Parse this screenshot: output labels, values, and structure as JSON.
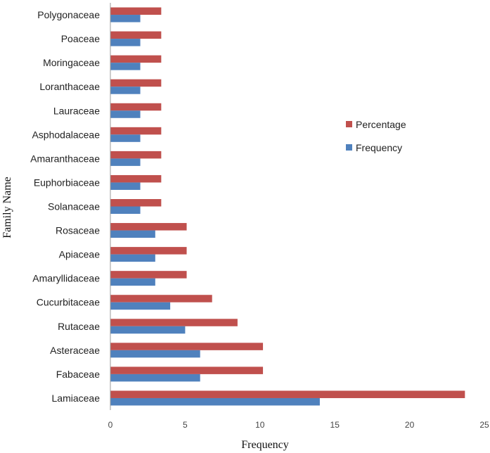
{
  "chart_data": {
    "type": "bar",
    "orientation": "horizontal",
    "title": "",
    "xlabel": "Frequency",
    "ylabel": "Family Name",
    "xlim": [
      0,
      25
    ],
    "xticks": [
      0,
      5,
      10,
      15,
      20,
      25
    ],
    "grid": false,
    "legend_position": "right",
    "categories": [
      "Lamiaceae",
      "Fabaceae",
      "Asteraceae",
      "Rutaceae",
      "Cucurbitaceae",
      "Amaryllidaceae",
      "Apiaceae",
      "Rosaceae",
      "Solanaceae",
      "Euphorbiaceae",
      "Amaranthaceae",
      "Asphodalaceae",
      "Lauraceae",
      "Loranthaceae",
      "Moringaceae",
      "Poaceae",
      "Polygonaceae"
    ],
    "series": [
      {
        "name": "Percentage",
        "color": "#C0504D",
        "values": [
          23.7,
          10.2,
          10.2,
          8.5,
          6.8,
          5.1,
          5.1,
          5.1,
          3.4,
          3.4,
          3.4,
          3.4,
          3.4,
          3.4,
          3.4,
          3.4,
          3.4
        ]
      },
      {
        "name": "Frequency",
        "color": "#4F81BD",
        "values": [
          14,
          6,
          6,
          5,
          4,
          3,
          3,
          3,
          2,
          2,
          2,
          2,
          2,
          2,
          2,
          2,
          2
        ]
      }
    ],
    "legend": [
      "Percentage",
      "Frequency"
    ]
  }
}
